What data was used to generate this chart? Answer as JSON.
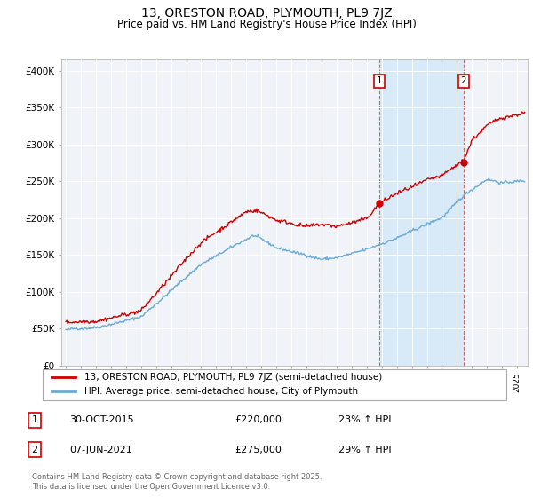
{
  "title": "13, ORESTON ROAD, PLYMOUTH, PL9 7JZ",
  "subtitle": "Price paid vs. HM Land Registry's House Price Index (HPI)",
  "title_fontsize": 10,
  "subtitle_fontsize": 8.5,
  "ylabel_ticks": [
    "£0",
    "£50K",
    "£100K",
    "£150K",
    "£200K",
    "£250K",
    "£300K",
    "£350K",
    "£400K"
  ],
  "ytick_vals": [
    0,
    50000,
    100000,
    150000,
    200000,
    250000,
    300000,
    350000,
    400000
  ],
  "ylim": [
    0,
    415000
  ],
  "xlim_start": 1994.7,
  "xlim_end": 2025.7,
  "background_color": "#ffffff",
  "plot_bg_color": "#f0f4f8",
  "grid_color": "#ffffff",
  "line1_color": "#cc0000",
  "line2_color": "#6aaad4",
  "shade_color": "#d8eaf8",
  "sale1_x": 2015.83,
  "sale1_y": 220000,
  "sale1_date": "30-OCT-2015",
  "sale1_price": "£220,000",
  "sale1_hpi": "23% ↑ HPI",
  "sale2_x": 2021.44,
  "sale2_y": 275000,
  "sale2_date": "07-JUN-2021",
  "sale2_price": "£275,000",
  "sale2_hpi": "29% ↑ HPI",
  "legend_line1": "13, ORESTON ROAD, PLYMOUTH, PL9 7JZ (semi-detached house)",
  "legend_line2": "HPI: Average price, semi-detached house, City of Plymouth",
  "footnote": "Contains HM Land Registry data © Crown copyright and database right 2025.\nThis data is licensed under the Open Government Licence v3.0.",
  "xtick_years": [
    1995,
    1996,
    1997,
    1998,
    1999,
    2000,
    2001,
    2002,
    2003,
    2004,
    2005,
    2006,
    2007,
    2008,
    2009,
    2010,
    2011,
    2012,
    2013,
    2014,
    2015,
    2016,
    2017,
    2018,
    2019,
    2020,
    2021,
    2022,
    2023,
    2024,
    2025
  ]
}
